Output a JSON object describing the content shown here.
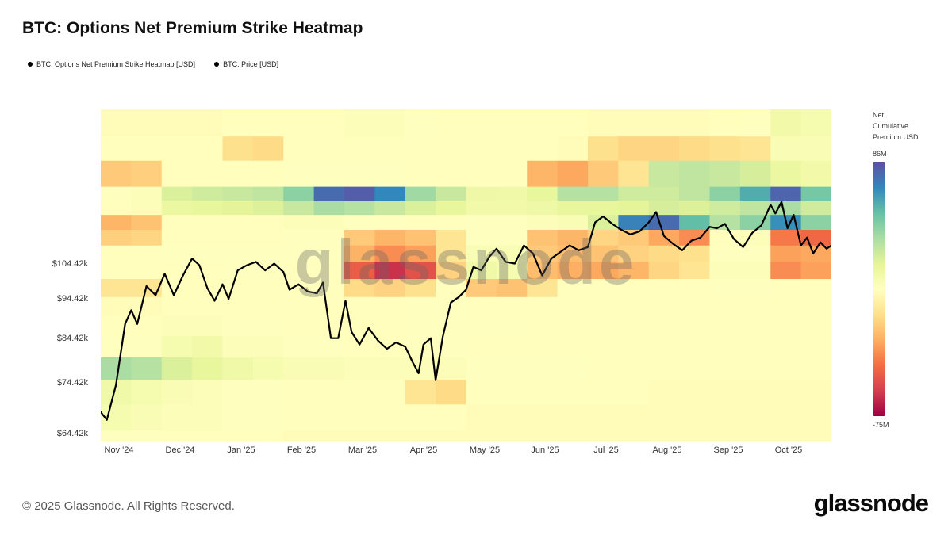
{
  "page": {
    "title": "BTC: Options Net Premium Strike Heatmap",
    "watermark": "glassnode",
    "footer": "© 2025 Glassnode. All Rights Reserved.",
    "logo": "glassnode"
  },
  "legend": {
    "items": [
      {
        "label": "BTC: Options Net Premium Strike Heatmap [USD]"
      },
      {
        "label": "BTC: Price [USD]"
      }
    ]
  },
  "colorbar": {
    "title": "Net Cumulative Premium USD",
    "max_label": "86M",
    "min_label": "-75M",
    "vmin": -75,
    "vmax": 86,
    "colors": [
      "#9e0142",
      "#d53e4f",
      "#f46d43",
      "#fdae61",
      "#fee08b",
      "#ffffbf",
      "#e6f598",
      "#abdda4",
      "#66c2a5",
      "#3288bd",
      "#5e4fa2"
    ]
  },
  "chart_data": {
    "type": "heatmap",
    "title": "BTC: Options Net Premium Strike Heatmap",
    "unit": "M USD (net cumulative options premium per strike band, per half-month)",
    "legend_position": "right",
    "x_axis": {
      "tick_labels": [
        "Nov '24",
        "Dec '24",
        "Jan '25",
        "Feb '25",
        "Mar '25",
        "Apr '25",
        "May '25",
        "Jun '25",
        "Jul '25",
        "Aug '25",
        "Sep '25",
        "Oct '25"
      ],
      "months": 12,
      "columns_per_month": 2
    },
    "y_axis": {
      "scale": "log",
      "min_k": 63,
      "max_k": 162,
      "tick_values_k": [
        64.42,
        74.42,
        84.42,
        94.42,
        104.42
      ],
      "tick_labels": [
        "$64.42k",
        "$74.42k",
        "$84.42k",
        "$94.42k",
        "$104.42k"
      ]
    },
    "rows": [
      {
        "band_k": [
          150,
          162
        ],
        "values": [
          4,
          4,
          4,
          4,
          5,
          5,
          5,
          5,
          8,
          8,
          6,
          5,
          5,
          5,
          5,
          5,
          4,
          4,
          4,
          4,
          5,
          6,
          14,
          12
        ]
      },
      {
        "band_k": [
          140,
          150
        ],
        "values": [
          5,
          5,
          5,
          5,
          -10,
          -12,
          5,
          5,
          5,
          5,
          5,
          5,
          5,
          5,
          5,
          4,
          -10,
          -14,
          -14,
          -12,
          -10,
          -8,
          10,
          10
        ]
      },
      {
        "band_k": [
          130,
          140
        ],
        "values": [
          -18,
          -16,
          5,
          5,
          5,
          5,
          6,
          6,
          6,
          6,
          5,
          5,
          5,
          5,
          -24,
          -28,
          -18,
          -8,
          30,
          32,
          30,
          26,
          18,
          14
        ]
      },
      {
        "band_k": [
          125,
          130
        ],
        "values": [
          6,
          8,
          25,
          28,
          30,
          32,
          45,
          78,
          82,
          70,
          40,
          30,
          16,
          15,
          20,
          35,
          35,
          28,
          28,
          32,
          45,
          60,
          80,
          50
        ]
      },
      {
        "band_k": [
          120,
          125
        ],
        "values": [
          5,
          8,
          18,
          20,
          22,
          24,
          30,
          38,
          35,
          30,
          25,
          20,
          14,
          14,
          16,
          20,
          20,
          22,
          26,
          24,
          28,
          32,
          38,
          28
        ]
      },
      {
        "band_k": [
          115,
          120
        ],
        "values": [
          -24,
          -20,
          5,
          5,
          5,
          5,
          8,
          8,
          6,
          6,
          5,
          5,
          6,
          6,
          8,
          10,
          25,
          72,
          78,
          55,
          35,
          45,
          68,
          45
        ]
      },
      {
        "band_k": [
          110,
          115
        ],
        "values": [
          -16,
          -14,
          5,
          5,
          5,
          5,
          6,
          6,
          -18,
          -24,
          -20,
          -8,
          6,
          6,
          -20,
          -24,
          -14,
          -18,
          -28,
          -35,
          5,
          8,
          -40,
          -45
        ]
      },
      {
        "band_k": [
          105,
          110
        ],
        "values": [
          5,
          5,
          6,
          6,
          6,
          6,
          6,
          6,
          -25,
          -35,
          -30,
          -8,
          10,
          10,
          -18,
          -22,
          -20,
          -15,
          -12,
          -10,
          6,
          6,
          -30,
          -28
        ]
      },
      {
        "band_k": [
          100,
          105
        ],
        "values": [
          5,
          5,
          5,
          5,
          6,
          6,
          5,
          5,
          -48,
          -62,
          -52,
          -15,
          15,
          12,
          -22,
          -26,
          -28,
          -24,
          -14,
          -8,
          8,
          8,
          -35,
          -30
        ]
      },
      {
        "band_k": [
          95,
          100
        ],
        "values": [
          -8,
          -8,
          5,
          5,
          5,
          5,
          5,
          5,
          -12,
          -15,
          -10,
          5,
          -18,
          -20,
          -8,
          5,
          5,
          5,
          5,
          5,
          6,
          6,
          5,
          5
        ]
      },
      {
        "band_k": [
          90,
          95
        ],
        "values": [
          4,
          4,
          5,
          5,
          5,
          5,
          5,
          5,
          5,
          5,
          6,
          6,
          5,
          5,
          5,
          5,
          5,
          5,
          5,
          5,
          5,
          5,
          5,
          5
        ]
      },
      {
        "band_k": [
          85,
          90
        ],
        "values": [
          5,
          5,
          8,
          8,
          6,
          6,
          5,
          5,
          5,
          5,
          6,
          6,
          6,
          6,
          5,
          5,
          5,
          5,
          5,
          5,
          5,
          5,
          5,
          5
        ]
      },
      {
        "band_k": [
          80,
          85
        ],
        "values": [
          6,
          6,
          12,
          14,
          8,
          8,
          6,
          6,
          5,
          5,
          6,
          6,
          5,
          5,
          5,
          5,
          5,
          5,
          5,
          5,
          5,
          5,
          5,
          5
        ]
      },
      {
        "band_k": [
          75,
          80
        ],
        "values": [
          38,
          35,
          25,
          20,
          15,
          12,
          10,
          10,
          8,
          8,
          8,
          8,
          6,
          6,
          6,
          6,
          5,
          5,
          5,
          5,
          5,
          5,
          5,
          5
        ]
      },
      {
        "band_k": [
          70,
          75
        ],
        "values": [
          15,
          12,
          10,
          8,
          6,
          6,
          5,
          5,
          5,
          5,
          -8,
          -12,
          5,
          5,
          5,
          5,
          5,
          5,
          4,
          4,
          4,
          4,
          4,
          4
        ]
      },
      {
        "band_k": [
          65,
          70
        ],
        "values": [
          12,
          10,
          8,
          8,
          6,
          6,
          5,
          5,
          5,
          5,
          5,
          5,
          4,
          4,
          4,
          4,
          4,
          4,
          4,
          4,
          4,
          4,
          4,
          4
        ]
      },
      {
        "band_k": [
          63,
          65
        ],
        "values": [
          6,
          6,
          5,
          5,
          5,
          5,
          4,
          4,
          4,
          4,
          4,
          4,
          4,
          4,
          4,
          4,
          4,
          4,
          4,
          4,
          4,
          4,
          4,
          4
        ]
      }
    ],
    "price_line": {
      "name": "BTC: Price [USD]",
      "color": "#000000",
      "x_unit": "months since Nov 1 2024",
      "y_unit": "kUSD",
      "points": [
        [
          0.0,
          68.5
        ],
        [
          0.1,
          67.0
        ],
        [
          0.25,
          74.0
        ],
        [
          0.4,
          88.0
        ],
        [
          0.5,
          91.5
        ],
        [
          0.6,
          88.0
        ],
        [
          0.75,
          98.0
        ],
        [
          0.9,
          95.5
        ],
        [
          1.05,
          101.5
        ],
        [
          1.2,
          95.5
        ],
        [
          1.35,
          101.0
        ],
        [
          1.5,
          106.0
        ],
        [
          1.62,
          104.0
        ],
        [
          1.75,
          97.5
        ],
        [
          1.87,
          94.0
        ],
        [
          2.0,
          98.5
        ],
        [
          2.1,
          94.5
        ],
        [
          2.25,
          102.5
        ],
        [
          2.4,
          104.0
        ],
        [
          2.55,
          105.0
        ],
        [
          2.7,
          102.5
        ],
        [
          2.85,
          104.5
        ],
        [
          3.0,
          102.0
        ],
        [
          3.1,
          97.0
        ],
        [
          3.25,
          98.5
        ],
        [
          3.4,
          96.5
        ],
        [
          3.55,
          96.0
        ],
        [
          3.65,
          99.0
        ],
        [
          3.78,
          84.5
        ],
        [
          3.9,
          84.5
        ],
        [
          4.02,
          94.0
        ],
        [
          4.12,
          86.0
        ],
        [
          4.25,
          83.0
        ],
        [
          4.4,
          87.0
        ],
        [
          4.55,
          84.0
        ],
        [
          4.7,
          82.0
        ],
        [
          4.85,
          83.5
        ],
        [
          5.0,
          82.5
        ],
        [
          5.12,
          79.0
        ],
        [
          5.22,
          76.5
        ],
        [
          5.3,
          83.0
        ],
        [
          5.42,
          84.5
        ],
        [
          5.5,
          75.0
        ],
        [
          5.62,
          85.0
        ],
        [
          5.75,
          93.5
        ],
        [
          5.88,
          95.0
        ],
        [
          6.0,
          97.0
        ],
        [
          6.12,
          103.5
        ],
        [
          6.25,
          102.5
        ],
        [
          6.38,
          106.5
        ],
        [
          6.5,
          109.0
        ],
        [
          6.65,
          105.0
        ],
        [
          6.8,
          104.5
        ],
        [
          6.95,
          110.0
        ],
        [
          7.1,
          107.5
        ],
        [
          7.25,
          101.0
        ],
        [
          7.4,
          106.0
        ],
        [
          7.55,
          108.0
        ],
        [
          7.7,
          110.0
        ],
        [
          7.85,
          108.5
        ],
        [
          8.0,
          109.5
        ],
        [
          8.12,
          117.5
        ],
        [
          8.25,
          119.5
        ],
        [
          8.4,
          117.0
        ],
        [
          8.55,
          115.0
        ],
        [
          8.7,
          113.5
        ],
        [
          8.85,
          114.5
        ],
        [
          9.0,
          117.5
        ],
        [
          9.12,
          121.0
        ],
        [
          9.25,
          113.0
        ],
        [
          9.4,
          110.5
        ],
        [
          9.55,
          108.5
        ],
        [
          9.7,
          111.5
        ],
        [
          9.85,
          112.5
        ],
        [
          10.0,
          116.0
        ],
        [
          10.12,
          115.5
        ],
        [
          10.25,
          117.0
        ],
        [
          10.4,
          112.0
        ],
        [
          10.55,
          109.5
        ],
        [
          10.7,
          114.0
        ],
        [
          10.85,
          116.5
        ],
        [
          11.0,
          123.5
        ],
        [
          11.08,
          120.5
        ],
        [
          11.18,
          124.5
        ],
        [
          11.28,
          115.5
        ],
        [
          11.38,
          120.0
        ],
        [
          11.5,
          110.0
        ],
        [
          11.6,
          112.5
        ],
        [
          11.7,
          107.5
        ],
        [
          11.82,
          111.0
        ],
        [
          11.92,
          109.0
        ],
        [
          12.0,
          110.0
        ]
      ]
    }
  }
}
